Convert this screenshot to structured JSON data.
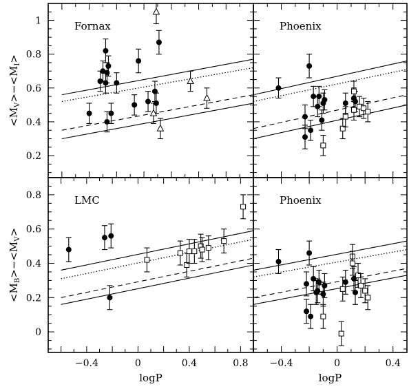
{
  "chart_data": [
    {
      "type": "scatter",
      "panel_title": "Fornax",
      "xlabel": "",
      "ylabel": "<M_V>−<M_I>",
      "xlim": [
        -0.7,
        0.8
      ],
      "ylim": [
        0.07,
        1.1
      ],
      "xticks": [],
      "xtick_labels": [],
      "yticks": [
        0.2,
        0.4,
        0.6,
        0.8,
        1.0
      ],
      "ytick_labels": [
        "0.2",
        "0.4",
        "0.6",
        "0.8",
        "1"
      ],
      "lines": [
        {
          "style": "solid",
          "x0": -0.6,
          "y0": 0.56,
          "x1": 0.8,
          "y1": 0.77
        },
        {
          "style": "dotted",
          "x0": -0.6,
          "y0": 0.52,
          "x1": 0.8,
          "y1": 0.72
        },
        {
          "style": "dashed",
          "x0": -0.6,
          "y0": 0.35,
          "x1": 0.8,
          "y1": 0.56
        },
        {
          "style": "solid",
          "x0": -0.6,
          "y0": 0.3,
          "x1": 0.8,
          "y1": 0.51
        }
      ],
      "series": [
        {
          "marker": "filled-circle",
          "points": [
            {
              "x": -0.28,
              "y": 0.82,
              "err": 0.07
            },
            {
              "x": -0.26,
              "y": 0.73,
              "err": 0.06
            },
            {
              "x": -0.3,
              "y": 0.7,
              "err": 0.06
            },
            {
              "x": -0.27,
              "y": 0.69,
              "err": 0.06
            },
            {
              "x": -0.32,
              "y": 0.64,
              "err": 0.06
            },
            {
              "x": -0.28,
              "y": 0.63,
              "err": 0.06
            },
            {
              "x": -0.2,
              "y": 0.63,
              "err": 0.06
            },
            {
              "x": -0.4,
              "y": 0.45,
              "err": 0.06
            },
            {
              "x": -0.27,
              "y": 0.4,
              "err": 0.06
            },
            {
              "x": -0.24,
              "y": 0.45,
              "err": 0.06
            },
            {
              "x": -0.07,
              "y": 0.5,
              "err": 0.06
            },
            {
              "x": -0.04,
              "y": 0.76,
              "err": 0.07
            },
            {
              "x": 0.03,
              "y": 0.52,
              "err": 0.06
            },
            {
              "x": 0.08,
              "y": 0.58,
              "err": 0.06
            },
            {
              "x": 0.09,
              "y": 0.51,
              "err": 0.06
            },
            {
              "x": 0.11,
              "y": 0.87,
              "err": 0.07
            }
          ]
        },
        {
          "marker": "open-triangle",
          "points": [
            {
              "x": 0.07,
              "y": 0.45,
              "err": 0.06
            },
            {
              "x": 0.09,
              "y": 1.05,
              "err": 0.07
            },
            {
              "x": 0.12,
              "y": 0.36,
              "err": 0.06
            },
            {
              "x": 0.34,
              "y": 0.64,
              "err": 0.06
            },
            {
              "x": 0.46,
              "y": 0.54,
              "err": 0.06
            }
          ]
        }
      ]
    },
    {
      "type": "scatter",
      "panel_title": "Phoenix",
      "xlabel": "",
      "ylabel": "",
      "xlim": [
        -0.6,
        0.5
      ],
      "ylim": [
        0.07,
        1.1
      ],
      "xticks": [],
      "xtick_labels": [],
      "yticks": [],
      "ytick_labels": [],
      "lines": [
        {
          "style": "solid",
          "x0": -0.6,
          "y0": 0.56,
          "x1": 0.5,
          "y1": 0.76
        },
        {
          "style": "dotted",
          "x0": -0.6,
          "y0": 0.52,
          "x1": 0.5,
          "y1": 0.71
        },
        {
          "style": "dashed",
          "x0": -0.6,
          "y0": 0.36,
          "x1": 0.5,
          "y1": 0.56
        },
        {
          "style": "solid",
          "x0": -0.6,
          "y0": 0.3,
          "x1": 0.5,
          "y1": 0.5
        }
      ],
      "series": [
        {
          "marker": "filled-circle",
          "points": [
            {
              "x": -0.42,
              "y": 0.6,
              "err": 0.06
            },
            {
              "x": -0.2,
              "y": 0.73,
              "err": 0.07
            },
            {
              "x": -0.23,
              "y": 0.43,
              "err": 0.07
            },
            {
              "x": -0.23,
              "y": 0.31,
              "err": 0.07
            },
            {
              "x": -0.19,
              "y": 0.35,
              "err": 0.06
            },
            {
              "x": -0.17,
              "y": 0.55,
              "err": 0.06
            },
            {
              "x": -0.14,
              "y": 0.49,
              "err": 0.06
            },
            {
              "x": -0.13,
              "y": 0.55,
              "err": 0.06
            },
            {
              "x": -0.1,
              "y": 0.51,
              "err": 0.06
            },
            {
              "x": -0.09,
              "y": 0.53,
              "err": 0.06
            },
            {
              "x": -0.11,
              "y": 0.41,
              "err": 0.06
            },
            {
              "x": 0.06,
              "y": 0.51,
              "err": 0.06
            },
            {
              "x": 0.12,
              "y": 0.54,
              "err": 0.06
            },
            {
              "x": 0.13,
              "y": 0.52,
              "err": 0.06
            }
          ]
        },
        {
          "marker": "open-square",
          "points": [
            {
              "x": -0.1,
              "y": 0.26,
              "err": 0.06
            },
            {
              "x": 0.04,
              "y": 0.36,
              "err": 0.06
            },
            {
              "x": 0.06,
              "y": 0.43,
              "err": 0.06
            },
            {
              "x": 0.12,
              "y": 0.58,
              "err": 0.06
            },
            {
              "x": 0.12,
              "y": 0.47,
              "err": 0.06
            },
            {
              "x": 0.16,
              "y": 0.49,
              "err": 0.06
            },
            {
              "x": 0.19,
              "y": 0.48,
              "err": 0.06
            },
            {
              "x": 0.22,
              "y": 0.46,
              "err": 0.06
            }
          ]
        }
      ]
    },
    {
      "type": "scatter",
      "panel_title": "LMC",
      "xlabel": "logP",
      "ylabel": "<M_B>−<M_V>",
      "xlim": [
        -0.7,
        0.9
      ],
      "ylim": [
        -0.12,
        0.9
      ],
      "xticks": [
        -0.4,
        0,
        0.4,
        0.8
      ],
      "xtick_labels": [
        "−0.4",
        "0",
        "0.4",
        "0.8"
      ],
      "yticks": [
        0,
        0.2,
        0.4,
        0.6,
        0.8
      ],
      "ytick_labels": [
        "0",
        "0.2",
        "0.4",
        "0.6",
        "0.8"
      ],
      "lines": [
        {
          "style": "solid",
          "x0": -0.6,
          "y0": 0.36,
          "x1": 0.9,
          "y1": 0.59
        },
        {
          "style": "dotted",
          "x0": -0.6,
          "y0": 0.31,
          "x1": 0.9,
          "y1": 0.54
        },
        {
          "style": "dashed",
          "x0": -0.6,
          "y0": 0.2,
          "x1": 0.9,
          "y1": 0.43
        },
        {
          "style": "solid",
          "x0": -0.6,
          "y0": 0.16,
          "x1": 0.9,
          "y1": 0.39
        }
      ],
      "series": [
        {
          "marker": "filled-circle",
          "points": [
            {
              "x": -0.54,
              "y": 0.48,
              "err": 0.07
            },
            {
              "x": -0.26,
              "y": 0.55,
              "err": 0.07
            },
            {
              "x": -0.21,
              "y": 0.56,
              "err": 0.07
            },
            {
              "x": -0.22,
              "y": 0.2,
              "err": 0.07
            }
          ]
        },
        {
          "marker": "open-square",
          "points": [
            {
              "x": 0.07,
              "y": 0.42,
              "err": 0.07
            },
            {
              "x": 0.33,
              "y": 0.46,
              "err": 0.07
            },
            {
              "x": 0.38,
              "y": 0.39,
              "err": 0.07
            },
            {
              "x": 0.4,
              "y": 0.47,
              "err": 0.07
            },
            {
              "x": 0.44,
              "y": 0.47,
              "err": 0.07
            },
            {
              "x": 0.49,
              "y": 0.5,
              "err": 0.07
            },
            {
              "x": 0.5,
              "y": 0.48,
              "err": 0.07
            },
            {
              "x": 0.55,
              "y": 0.49,
              "err": 0.07
            },
            {
              "x": 0.67,
              "y": 0.53,
              "err": 0.07
            },
            {
              "x": 0.82,
              "y": 0.73,
              "err": 0.07
            }
          ]
        }
      ]
    },
    {
      "type": "scatter",
      "panel_title": "Phoenix",
      "xlabel": "logP",
      "ylabel": "",
      "xlim": [
        -0.6,
        0.5
      ],
      "ylim": [
        -0.12,
        0.9
      ],
      "xticks": [
        -0.4,
        0,
        0.4
      ],
      "xtick_labels": [
        "−0.4",
        "0",
        "0.4"
      ],
      "yticks": [],
      "ytick_labels": [],
      "lines": [
        {
          "style": "solid",
          "x0": -0.6,
          "y0": 0.36,
          "x1": 0.5,
          "y1": 0.53
        },
        {
          "style": "dotted",
          "x0": -0.6,
          "y0": 0.32,
          "x1": 0.5,
          "y1": 0.48
        },
        {
          "style": "dashed",
          "x0": -0.6,
          "y0": 0.2,
          "x1": 0.5,
          "y1": 0.37
        },
        {
          "style": "solid",
          "x0": -0.6,
          "y0": 0.16,
          "x1": 0.5,
          "y1": 0.33
        }
      ],
      "series": [
        {
          "marker": "filled-circle",
          "points": [
            {
              "x": -0.42,
              "y": 0.41,
              "err": 0.07
            },
            {
              "x": -0.2,
              "y": 0.46,
              "err": 0.07
            },
            {
              "x": -0.22,
              "y": 0.28,
              "err": 0.07
            },
            {
              "x": -0.22,
              "y": 0.12,
              "err": 0.07
            },
            {
              "x": -0.19,
              "y": 0.09,
              "err": 0.07
            },
            {
              "x": -0.17,
              "y": 0.31,
              "err": 0.07
            },
            {
              "x": -0.15,
              "y": 0.23,
              "err": 0.07
            },
            {
              "x": -0.14,
              "y": 0.24,
              "err": 0.07
            },
            {
              "x": -0.13,
              "y": 0.29,
              "err": 0.07
            },
            {
              "x": -0.1,
              "y": 0.22,
              "err": 0.07
            },
            {
              "x": -0.09,
              "y": 0.27,
              "err": 0.07
            },
            {
              "x": 0.06,
              "y": 0.29,
              "err": 0.07
            },
            {
              "x": 0.12,
              "y": 0.31,
              "err": 0.07
            },
            {
              "x": 0.13,
              "y": 0.23,
              "err": 0.07
            }
          ]
        },
        {
          "marker": "open-square",
          "points": [
            {
              "x": -0.1,
              "y": 0.09,
              "err": 0.07
            },
            {
              "x": 0.03,
              "y": -0.01,
              "err": 0.07
            },
            {
              "x": 0.04,
              "y": 0.25,
              "err": 0.07
            },
            {
              "x": 0.11,
              "y": 0.44,
              "err": 0.07
            },
            {
              "x": 0.11,
              "y": 0.4,
              "err": 0.07
            },
            {
              "x": 0.15,
              "y": 0.33,
              "err": 0.07
            },
            {
              "x": 0.17,
              "y": 0.27,
              "err": 0.07
            },
            {
              "x": 0.2,
              "y": 0.24,
              "err": 0.07
            },
            {
              "x": 0.22,
              "y": 0.2,
              "err": 0.07
            }
          ]
        }
      ]
    }
  ]
}
